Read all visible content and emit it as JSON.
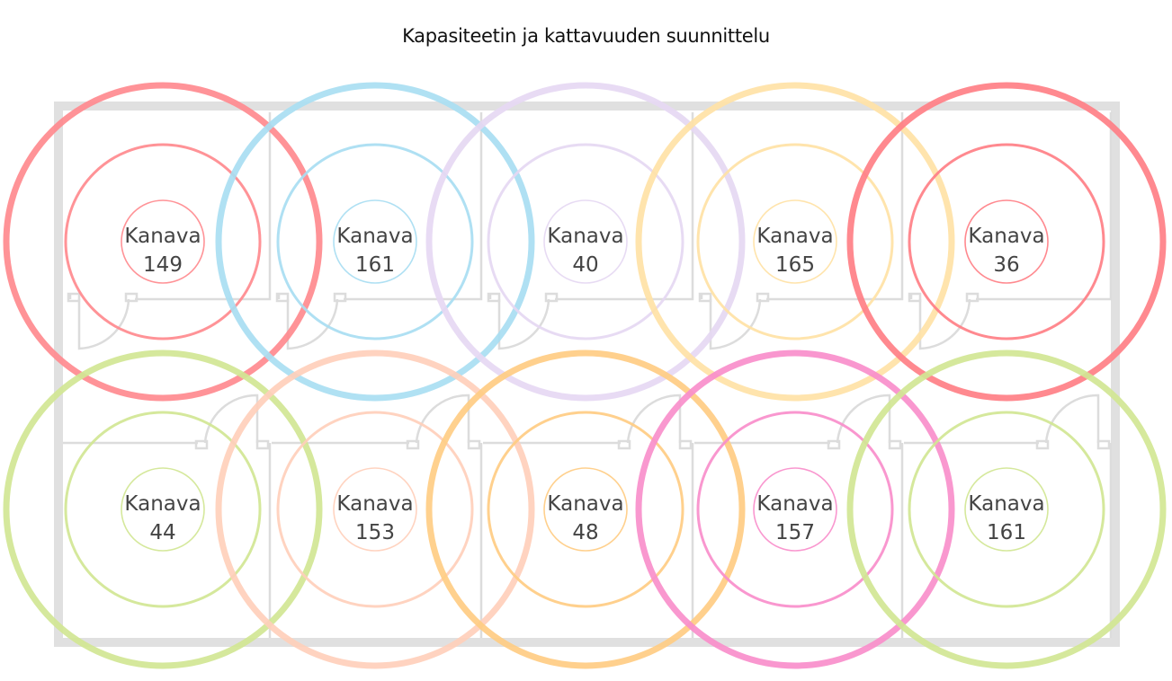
{
  "title": "Kapasiteetin ja kattavuuden suunnittelu",
  "label_prefix": "Kanava",
  "colors": {
    "wall": "#e0e0e0",
    "text": "#444444"
  },
  "access_points": [
    {
      "row": 1,
      "col": 1,
      "channel": "149",
      "color": "#ff8a8f"
    },
    {
      "row": 1,
      "col": 2,
      "channel": "161",
      "color": "#a9def2"
    },
    {
      "row": 1,
      "col": 3,
      "channel": "40",
      "color": "#e6d8f3"
    },
    {
      "row": 1,
      "col": 4,
      "channel": "165",
      "color": "#ffe2a6"
    },
    {
      "row": 1,
      "col": 5,
      "channel": "36",
      "color": "#ff7f86"
    },
    {
      "row": 2,
      "col": 1,
      "channel": "44",
      "color": "#d2e794"
    },
    {
      "row": 2,
      "col": 2,
      "channel": "153",
      "color": "#ffd0bb"
    },
    {
      "row": 2,
      "col": 3,
      "channel": "48",
      "color": "#ffcd84"
    },
    {
      "row": 2,
      "col": 4,
      "channel": "157",
      "color": "#f98fcb"
    },
    {
      "row": 2,
      "col": 5,
      "channel": "161",
      "color": "#d2e794"
    }
  ]
}
